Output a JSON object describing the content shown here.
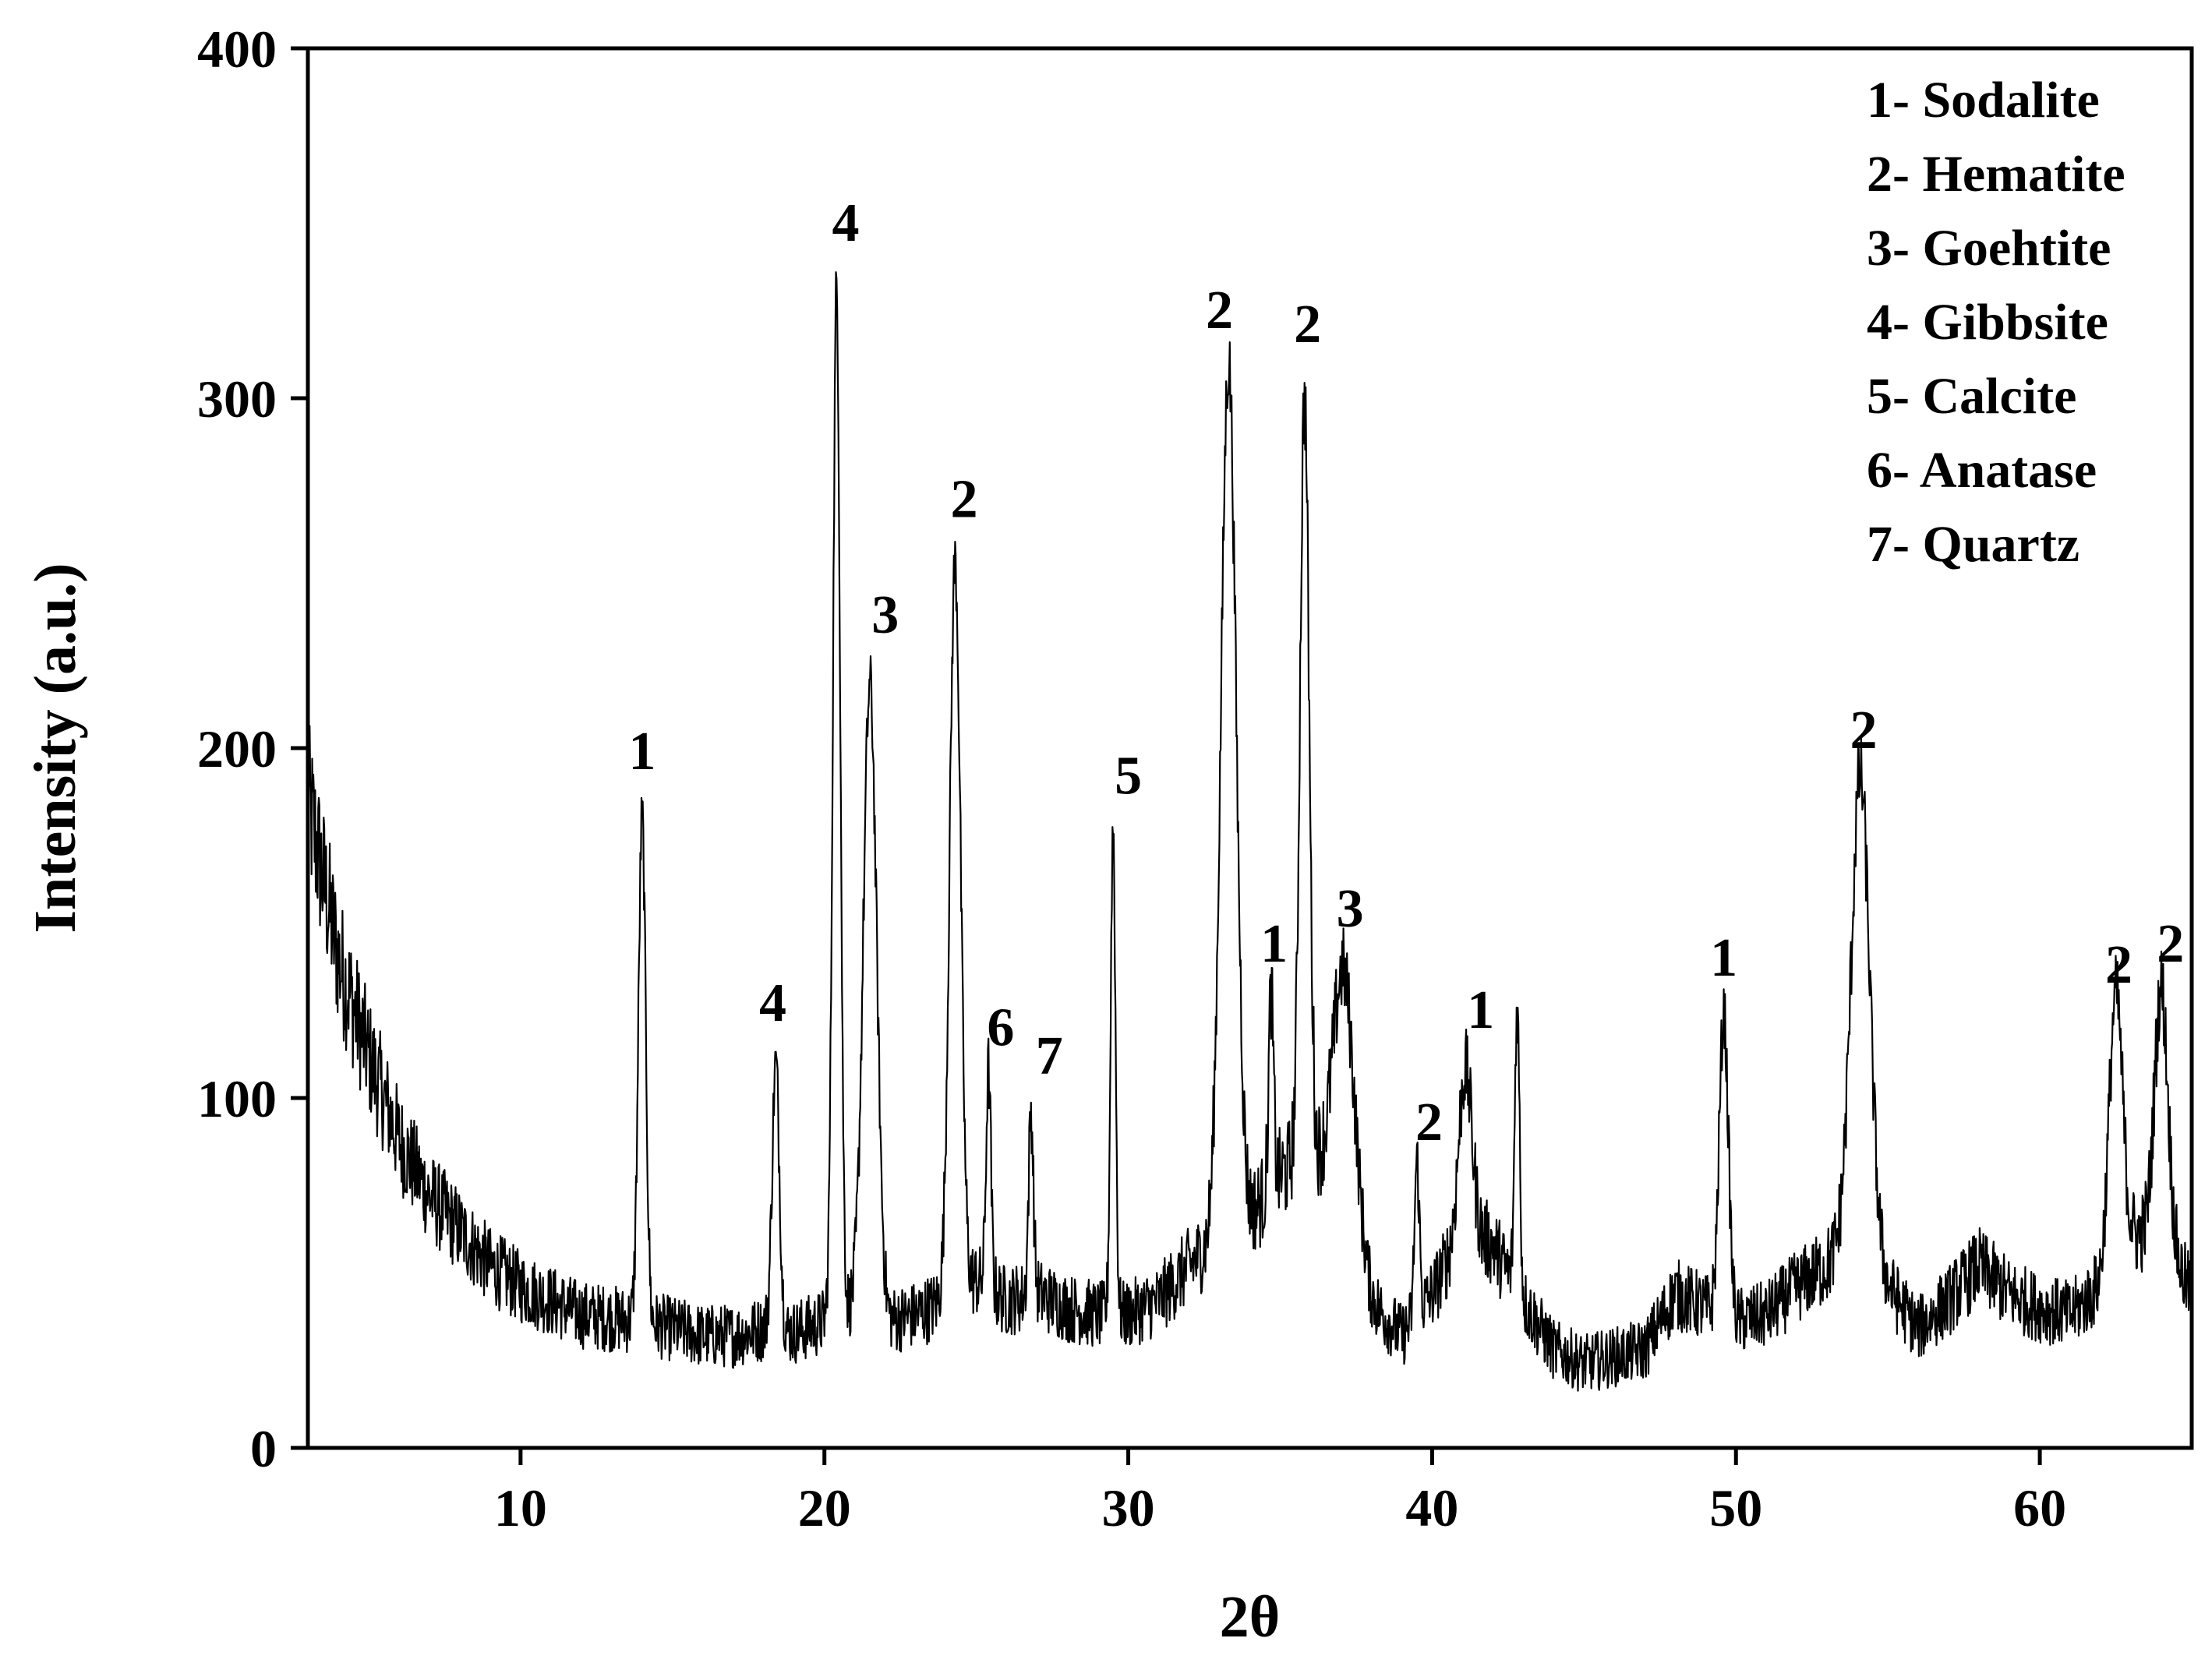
{
  "chart_data": {
    "type": "line",
    "title": "",
    "xlabel": "2θ",
    "ylabel": "Intensity (a.u.)",
    "xlim": [
      3,
      65
    ],
    "ylim": [
      0,
      400
    ],
    "xticks": [
      10,
      20,
      30,
      40,
      50,
      60
    ],
    "yticks": [
      0,
      100,
      200,
      300,
      400
    ],
    "grid": false,
    "legend_position": "top-right",
    "line_color": "#000000",
    "legend": [
      "1- Sodalite",
      "2- Hematite",
      "3- Goehtite",
      "4- Gibbsite",
      "5- Calcite",
      "6- Anatase",
      "7- Quartz"
    ],
    "series": [
      {
        "baseline": [
          [
            3,
            185
          ],
          [
            4,
            140
          ],
          [
            5,
            112
          ],
          [
            6,
            88
          ],
          [
            7,
            72
          ],
          [
            8,
            62
          ],
          [
            9,
            52
          ],
          [
            10,
            46
          ],
          [
            11,
            42
          ],
          [
            12,
            38
          ],
          [
            13,
            37
          ],
          [
            14,
            36
          ],
          [
            15,
            34
          ],
          [
            16,
            32
          ],
          [
            17,
            32
          ],
          [
            18,
            34
          ],
          [
            19,
            33
          ],
          [
            20,
            36
          ],
          [
            21,
            40
          ],
          [
            22,
            36
          ],
          [
            23,
            38
          ],
          [
            24,
            42
          ],
          [
            25,
            48
          ],
          [
            26,
            42
          ],
          [
            27,
            44
          ],
          [
            28,
            40
          ],
          [
            29,
            38
          ],
          [
            30,
            38
          ],
          [
            31,
            42
          ],
          [
            32,
            52
          ],
          [
            33,
            60
          ],
          [
            34,
            66
          ],
          [
            35,
            78
          ],
          [
            36,
            84
          ],
          [
            37,
            70
          ],
          [
            38,
            42
          ],
          [
            39,
            32
          ],
          [
            40,
            44
          ],
          [
            41,
            62
          ],
          [
            42,
            58
          ],
          [
            43,
            42
          ],
          [
            44,
            28
          ],
          [
            45,
            24
          ],
          [
            46,
            26
          ],
          [
            47,
            28
          ],
          [
            48,
            44
          ],
          [
            49,
            40
          ],
          [
            50,
            36
          ],
          [
            51,
            38
          ],
          [
            52,
            46
          ],
          [
            53,
            52
          ],
          [
            54,
            64
          ],
          [
            55,
            46
          ],
          [
            56,
            34
          ],
          [
            57,
            42
          ],
          [
            58,
            52
          ],
          [
            59,
            44
          ],
          [
            60,
            40
          ],
          [
            61,
            38
          ],
          [
            62,
            46
          ],
          [
            63,
            60
          ],
          [
            64,
            62
          ],
          [
            65,
            44
          ]
        ],
        "peaks": [
          {
            "x": 14.0,
            "y": 180,
            "w": 0.12
          },
          {
            "x": 18.4,
            "y": 110,
            "w": 0.12
          },
          {
            "x": 20.4,
            "y": 332,
            "w": 0.12
          },
          {
            "x": 21.5,
            "y": 218,
            "w": 0.22
          },
          {
            "x": 24.3,
            "y": 253,
            "w": 0.18
          },
          {
            "x": 25.4,
            "y": 108,
            "w": 0.08
          },
          {
            "x": 26.8,
            "y": 96,
            "w": 0.08
          },
          {
            "x": 29.5,
            "y": 178,
            "w": 0.08
          },
          {
            "x": 33.3,
            "y": 310,
            "w": 0.25
          },
          {
            "x": 34.7,
            "y": 130,
            "w": 0.08
          },
          {
            "x": 35.8,
            "y": 300,
            "w": 0.15
          },
          {
            "x": 37.1,
            "y": 136,
            "w": 0.35
          },
          {
            "x": 39.5,
            "y": 82,
            "w": 0.08
          },
          {
            "x": 41.1,
            "y": 108,
            "w": 0.22
          },
          {
            "x": 42.8,
            "y": 126,
            "w": 0.08
          },
          {
            "x": 49.6,
            "y": 124,
            "w": 0.15
          },
          {
            "x": 54.1,
            "y": 192,
            "w": 0.3
          },
          {
            "x": 62.5,
            "y": 130,
            "w": 0.22
          },
          {
            "x": 64.0,
            "y": 132,
            "w": 0.22
          }
        ]
      }
    ],
    "annotations": [
      {
        "text": "1",
        "x": 14.0,
        "y": 194
      },
      {
        "text": "4",
        "x": 18.3,
        "y": 122
      },
      {
        "text": "4",
        "x": 20.7,
        "y": 345
      },
      {
        "text": "3",
        "x": 22.0,
        "y": 233
      },
      {
        "text": "2",
        "x": 24.6,
        "y": 266
      },
      {
        "text": "6",
        "x": 25.8,
        "y": 115
      },
      {
        "text": "7",
        "x": 27.4,
        "y": 107
      },
      {
        "text": "5",
        "x": 30.0,
        "y": 187
      },
      {
        "text": "2",
        "x": 33.0,
        "y": 320
      },
      {
        "text": "2",
        "x": 35.9,
        "y": 316
      },
      {
        "text": "1",
        "x": 34.8,
        "y": 139
      },
      {
        "text": "3",
        "x": 37.3,
        "y": 149
      },
      {
        "text": "2",
        "x": 39.9,
        "y": 88
      },
      {
        "text": "1",
        "x": 41.6,
        "y": 120
      },
      {
        "text": "1",
        "x": 49.6,
        "y": 135
      },
      {
        "text": "2",
        "x": 54.2,
        "y": 200
      },
      {
        "text": "2",
        "x": 62.6,
        "y": 133
      },
      {
        "text": "2",
        "x": 64.3,
        "y": 139
      }
    ]
  }
}
